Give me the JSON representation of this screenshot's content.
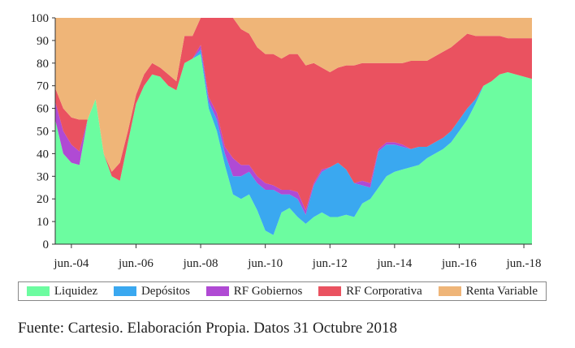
{
  "chart_data": {
    "type": "area",
    "stacked": true,
    "ylim": [
      0,
      100
    ],
    "yticks": [
      0,
      10,
      20,
      30,
      40,
      50,
      60,
      70,
      80,
      90,
      100
    ],
    "xlim": [
      2004.0,
      2018.75
    ],
    "xticks": [
      {
        "x": 2004.5,
        "label": "jun.-04"
      },
      {
        "x": 2006.5,
        "label": "jun.-06"
      },
      {
        "x": 2008.5,
        "label": "jun.-08"
      },
      {
        "x": 2010.5,
        "label": "jun.-10"
      },
      {
        "x": 2012.5,
        "label": "jun.-12"
      },
      {
        "x": 2014.5,
        "label": "jun.-14"
      },
      {
        "x": 2016.5,
        "label": "jun.-16"
      },
      {
        "x": 2018.5,
        "label": "jun.-18"
      }
    ],
    "x": [
      2004.0,
      2004.25,
      2004.5,
      2004.75,
      2005.0,
      2005.25,
      2005.5,
      2005.75,
      2006.0,
      2006.25,
      2006.5,
      2006.75,
      2007.0,
      2007.25,
      2007.5,
      2007.75,
      2008.0,
      2008.25,
      2008.5,
      2008.75,
      2009.0,
      2009.25,
      2009.5,
      2009.75,
      2010.0,
      2010.25,
      2010.5,
      2010.75,
      2011.0,
      2011.25,
      2011.5,
      2011.75,
      2012.0,
      2012.25,
      2012.5,
      2012.75,
      2013.0,
      2013.25,
      2013.5,
      2013.75,
      2014.0,
      2014.25,
      2014.5,
      2014.75,
      2015.0,
      2015.25,
      2015.5,
      2015.75,
      2016.0,
      2016.25,
      2016.5,
      2016.75,
      2017.0,
      2017.25,
      2017.5,
      2017.75,
      2018.0,
      2018.25,
      2018.5,
      2018.75
    ],
    "series": [
      {
        "name": "Liquidez",
        "color": "#6cfca0",
        "values": [
          55,
          40,
          36,
          35,
          55,
          64,
          40,
          30,
          28,
          45,
          62,
          70,
          75,
          74,
          70,
          68,
          80,
          82,
          84,
          60,
          50,
          35,
          22,
          20,
          22,
          15,
          6,
          4,
          14,
          16,
          12,
          9,
          12,
          14,
          12,
          12,
          13,
          12,
          18,
          20,
          25,
          30,
          32,
          33,
          34,
          35,
          38,
          40,
          42,
          45,
          50,
          55,
          62,
          70,
          72,
          75,
          76,
          75,
          74,
          73
        ]
      },
      {
        "name": "Depósitos",
        "color": "#3aa8f0",
        "values": [
          0,
          0,
          0,
          0,
          0,
          0,
          0,
          0,
          0,
          0,
          0,
          0,
          0,
          0,
          0,
          0,
          0,
          0,
          2,
          3,
          5,
          5,
          8,
          10,
          10,
          12,
          18,
          20,
          8,
          6,
          8,
          4,
          14,
          18,
          22,
          24,
          20,
          15,
          8,
          5,
          16,
          14,
          12,
          10,
          8,
          8,
          5,
          5,
          5,
          5,
          5,
          5,
          2,
          0,
          0,
          0,
          0,
          0,
          0,
          0
        ]
      },
      {
        "name": "RF Gobiernos",
        "color": "#b04ad4",
        "values": [
          8,
          10,
          8,
          6,
          0,
          0,
          0,
          0,
          0,
          0,
          0,
          0,
          0,
          0,
          0,
          0,
          0,
          0,
          2,
          2,
          3,
          3,
          8,
          5,
          3,
          3,
          3,
          2,
          2,
          2,
          3,
          2,
          1,
          1,
          0,
          0,
          0,
          0,
          2,
          2,
          1,
          1,
          1,
          1,
          0,
          0,
          0,
          0,
          0,
          0,
          0,
          0,
          0,
          0,
          0,
          0,
          0,
          0,
          0,
          0
        ]
      },
      {
        "name": "RF Corporativa",
        "color": "#ea5260",
        "values": [
          6,
          10,
          12,
          14,
          0,
          0,
          0,
          2,
          8,
          5,
          4,
          5,
          5,
          4,
          5,
          4,
          12,
          10,
          12,
          37,
          42,
          57,
          62,
          60,
          58,
          57,
          57,
          58,
          58,
          60,
          61,
          64,
          53,
          45,
          42,
          42,
          46,
          52,
          52,
          53,
          38,
          35,
          35,
          36,
          39,
          38,
          38,
          38,
          38,
          37,
          35,
          33,
          28,
          22,
          20,
          17,
          15,
          16,
          17,
          18
        ]
      },
      {
        "name": "Renta Variable",
        "color": "#efb578",
        "values": [
          31,
          40,
          44,
          45,
          45,
          36,
          60,
          68,
          64,
          50,
          34,
          25,
          20,
          22,
          25,
          28,
          8,
          8,
          0,
          0,
          0,
          0,
          0,
          5,
          7,
          13,
          16,
          16,
          18,
          16,
          16,
          21,
          20,
          22,
          24,
          22,
          21,
          21,
          20,
          20,
          20,
          20,
          20,
          20,
          19,
          19,
          19,
          17,
          15,
          13,
          10,
          7,
          8,
          8,
          8,
          8,
          9,
          9,
          9,
          9
        ]
      }
    ]
  },
  "legend": {
    "items": [
      {
        "label": "Liquidez",
        "color": "#6cfca0"
      },
      {
        "label": "Depósitos",
        "color": "#3aa8f0"
      },
      {
        "label": "RF Gobiernos",
        "color": "#b04ad4"
      },
      {
        "label": "RF Corporativa",
        "color": "#ea5260"
      },
      {
        "label": "Renta Variable",
        "color": "#efb578"
      }
    ]
  },
  "source_text": "Fuente: Cartesio. Elaboración Propia. Datos 31 Octubre 2018"
}
